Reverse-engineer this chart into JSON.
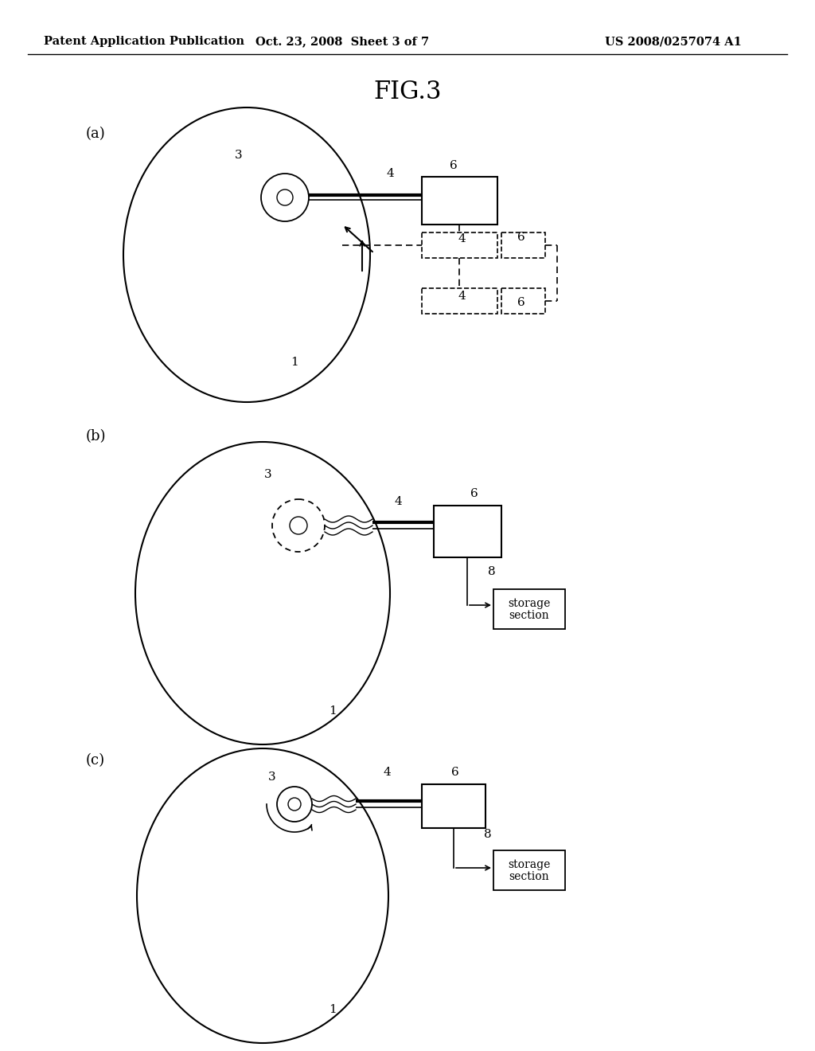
{
  "background_color": "#ffffff",
  "header_left": "Patent Application Publication",
  "header_center": "Oct. 23, 2008  Sheet 3 of 7",
  "header_right": "US 2008/0257074 A1",
  "fig_title": "FIG.3"
}
